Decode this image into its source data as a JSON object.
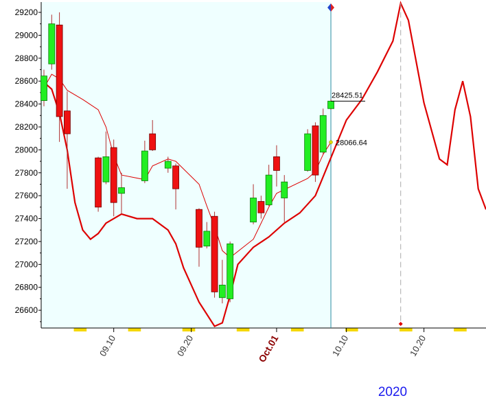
{
  "chart_data": {
    "type": "candlestick",
    "x": [
      "09.01",
      "09.02",
      "09.03",
      "09.04",
      "09.08",
      "09.09",
      "09.10",
      "09.11",
      "09.14",
      "09.15",
      "09.17",
      "09.18",
      "09.21",
      "09.22",
      "09.23",
      "09.24",
      "09.25",
      "09.28",
      "09.29",
      "09.30",
      "10.01",
      "10.02",
      "10.05",
      "10.06",
      "10.07",
      "10.08"
    ],
    "open": [
      28430,
      28750,
      29090,
      28340,
      27930,
      27720,
      28020,
      27620,
      27730,
      28140,
      27840,
      27860,
      27480,
      27160,
      27420,
      26710,
      26700,
      27370,
      27550,
      27520,
      27940,
      27580,
      27820,
      28210,
      27980,
      28360
    ],
    "high": [
      28700,
      29180,
      29200,
      28510,
      27940,
      28160,
      28090,
      27800,
      28080,
      28260,
      27940,
      27880,
      27490,
      27370,
      27460,
      27040,
      27200,
      27700,
      27600,
      27870,
      28040,
      27780,
      28180,
      28240,
      28360,
      28440
    ],
    "low": [
      28380,
      28700,
      28070,
      27660,
      27460,
      27700,
      27420,
      27440,
      27710,
      27990,
      27800,
      27480,
      26980,
      27140,
      26710,
      26660,
      26670,
      27350,
      27400,
      27510,
      27680,
      27370,
      27810,
      27720,
      27960,
      28350
    ],
    "close": [
      28645,
      29100,
      28290,
      28140,
      27500,
      27940,
      27540,
      27670,
      27990,
      28000,
      27900,
      27660,
      27150,
      27290,
      26760,
      26820,
      27180,
      27580,
      27450,
      27780,
      27820,
      27720,
      28140,
      27780,
      28300,
      28425.51
    ],
    "up_color": "#22ee22",
    "down_color": "#ee1111",
    "overlays": [
      {
        "color": "#dd0000",
        "x": [
          "09.01",
          "09.02",
          "09.03",
          "09.04",
          "09.06",
          "09.08",
          "09.09",
          "09.10",
          "09.11",
          "09.14",
          "09.15",
          "09.17",
          "09.18",
          "09.21",
          "09.22",
          "09.23",
          "09.24",
          "09.25",
          "09.28",
          "09.30",
          "10.01",
          "10.05",
          "10.06",
          "10.07",
          "10.08"
        ],
        "values": [
          28540,
          28660,
          28620,
          28520,
          28440,
          28350,
          28200,
          27950,
          27780,
          27740,
          27860,
          27920,
          27900,
          27700,
          27510,
          27330,
          27120,
          27060,
          27220,
          27500,
          27620,
          27750,
          27810,
          27960,
          28066.64
        ]
      },
      {
        "color": "#dd0000",
        "x": [
          "09.01",
          "09.02",
          "09.03",
          "09.04",
          "09.05",
          "09.06",
          "09.07",
          "09.08",
          "09.09",
          "09.11",
          "09.13",
          "09.15",
          "09.17",
          "09.18",
          "09.19",
          "09.21",
          "09.23",
          "09.24",
          "09.25",
          "09.26",
          "09.28",
          "09.30",
          "10.02",
          "10.04",
          "10.06",
          "10.08",
          "10.10",
          "10.12",
          "10.14",
          "10.16",
          "10.17",
          "10.18",
          "10.20",
          "10.22",
          "10.23",
          "10.24",
          "10.25",
          "10.26",
          "10.27",
          "10.28"
        ],
        "values": [
          28590,
          28530,
          28320,
          28000,
          27540,
          27300,
          27220,
          27270,
          27360,
          27440,
          27400,
          27400,
          27300,
          27180,
          26970,
          26670,
          26460,
          26490,
          26730,
          27000,
          27150,
          27240,
          27360,
          27450,
          27600,
          27930,
          28260,
          28440,
          28680,
          28950,
          29280,
          29130,
          28410,
          27920,
          27870,
          28350,
          28600,
          28290,
          27660,
          27480
        ]
      }
    ],
    "ylim": [
      26445,
      29290
    ],
    "yticks": [
      26600,
      26800,
      27000,
      27200,
      27400,
      27600,
      27800,
      28000,
      28200,
      28400,
      28600,
      28800,
      29000,
      29200
    ],
    "xticks": [
      "09.10",
      "09.20",
      {
        "value": "10.01",
        "label": "Oct.01"
      },
      "10.10",
      "10.20"
    ],
    "year_label": "2020"
  }
}
